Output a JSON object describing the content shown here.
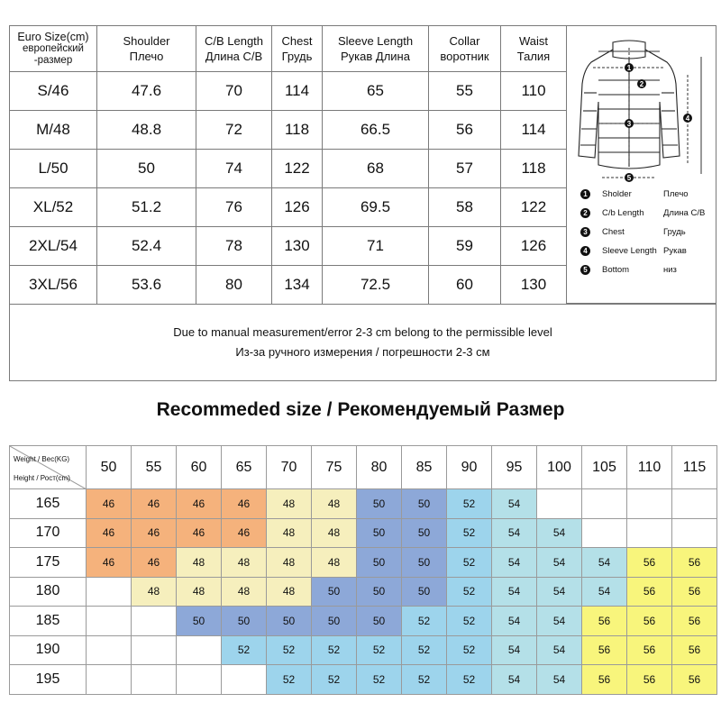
{
  "size_table": {
    "headers": [
      {
        "en": "Euro Size(cm)",
        "ru": "европейский -размер"
      },
      {
        "en": "Shoulder",
        "ru": "Плечо"
      },
      {
        "en": "C/B Length",
        "ru": "Длина C/B"
      },
      {
        "en": "Chest",
        "ru": "Грудь"
      },
      {
        "en": "Sleeve Length",
        "ru": "Рукав Длина"
      },
      {
        "en": "Collar",
        "ru": "воротник"
      },
      {
        "en": "Waist",
        "ru": "Талия"
      }
    ],
    "rows": [
      [
        "S/46",
        "47.6",
        "70",
        "114",
        "65",
        "55",
        "110"
      ],
      [
        "M/48",
        "48.8",
        "72",
        "118",
        "66.5",
        "56",
        "114"
      ],
      [
        "L/50",
        "50",
        "74",
        "122",
        "68",
        "57",
        "118"
      ],
      [
        "XL/52",
        "51.2",
        "76",
        "126",
        "69.5",
        "58",
        "122"
      ],
      [
        "2XL/54",
        "52.4",
        "78",
        "130",
        "71",
        "59",
        "126"
      ],
      [
        "3XL/56",
        "53.6",
        "80",
        "134",
        "72.5",
        "60",
        "130"
      ]
    ]
  },
  "note": {
    "line1": "Due to manual measurement/error 2-3 cm belong to the permissible level",
    "line2": "Из-за ручного измерения / погрешности 2-3 см"
  },
  "legend": [
    {
      "num": "1",
      "en": "Sholder",
      "ru": "Плечо"
    },
    {
      "num": "2",
      "en": "C/b Length",
      "ru": "Длина C/B"
    },
    {
      "num": "3",
      "en": "Chest",
      "ru": "Грудь"
    },
    {
      "num": "4",
      "en": "Sleeve Length",
      "ru": "Рукав"
    },
    {
      "num": "5",
      "en": "Bottom",
      "ru": "низ"
    }
  ],
  "diagram_markers": [
    "1",
    "2",
    "3",
    "4",
    "5"
  ],
  "recommended": {
    "heading": "Recommeded size / Рекомендуемый Размер",
    "corner_weight": "Weight / Вес(KG)",
    "corner_height": "Height / Рост(cm)",
    "weights": [
      "50",
      "55",
      "60",
      "65",
      "70",
      "75",
      "80",
      "85",
      "90",
      "95",
      "100",
      "105",
      "110",
      "115"
    ],
    "heights": [
      "165",
      "170",
      "175",
      "180",
      "185",
      "190",
      "195"
    ],
    "grid": [
      [
        "46",
        "46",
        "46",
        "46",
        "48",
        "48",
        "50",
        "50",
        "52",
        "54",
        "",
        "",
        "",
        ""
      ],
      [
        "46",
        "46",
        "46",
        "46",
        "48",
        "48",
        "50",
        "50",
        "52",
        "54",
        "54",
        "",
        "",
        ""
      ],
      [
        "46",
        "46",
        "48",
        "48",
        "48",
        "48",
        "50",
        "50",
        "52",
        "54",
        "54",
        "54",
        "56",
        "56"
      ],
      [
        "",
        "48",
        "48",
        "48",
        "48",
        "50",
        "50",
        "50",
        "52",
        "54",
        "54",
        "54",
        "56",
        "56"
      ],
      [
        "",
        "",
        "50",
        "50",
        "50",
        "50",
        "50",
        "52",
        "52",
        "54",
        "54",
        "56",
        "56",
        "56"
      ],
      [
        "",
        "",
        "",
        "52",
        "52",
        "52",
        "52",
        "52",
        "52",
        "54",
        "54",
        "56",
        "56",
        "56"
      ],
      [
        "",
        "",
        "",
        "",
        "52",
        "52",
        "52",
        "52",
        "52",
        "54",
        "54",
        "56",
        "56",
        "56"
      ]
    ],
    "size_colors": {
      "46": "#f5b27c",
      "48": "#f6efbd",
      "50": "#8da8d8",
      "52": "#9dd4ec",
      "54": "#b4e0e8",
      "56": "#f8f57c"
    }
  }
}
